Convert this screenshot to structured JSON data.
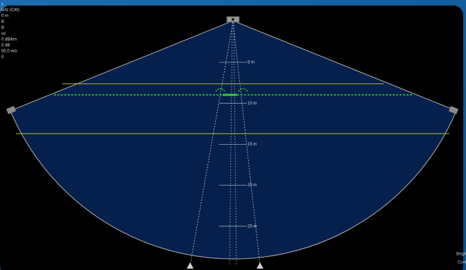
{
  "status_lines": [
    "s",
    "kHz (CW)",
    "0 m",
    "B",
    "B",
    "us",
    "0 dB/km",
    "0 dB",
    "00.0 m/s",
    "0"
  ],
  "depth_labels": [
    "5 m",
    "10 m",
    "15 m",
    "20 m",
    "25 m"
  ],
  "controls": [
    "Brigh",
    "Cont"
  ]
}
